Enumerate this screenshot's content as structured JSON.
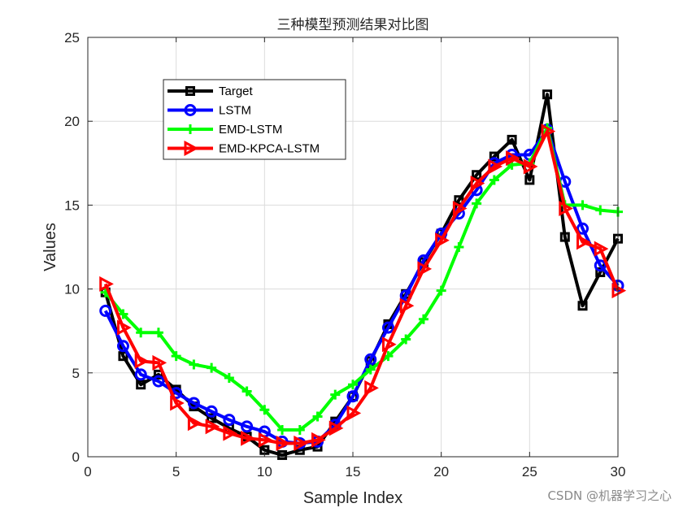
{
  "watermark": "CSDN @机器学习之心",
  "chart_data": {
    "type": "line",
    "title": "三种模型预测结果对比图",
    "xlabel": "Sample Index",
    "ylabel": "Values",
    "xlim": [
      0,
      30
    ],
    "ylim": [
      0,
      25
    ],
    "xticks": [
      0,
      5,
      10,
      15,
      20,
      25,
      30
    ],
    "yticks": [
      0,
      5,
      10,
      15,
      20,
      25
    ],
    "grid": true,
    "legend_position": "top-left",
    "x": [
      1,
      2,
      3,
      4,
      5,
      6,
      7,
      8,
      9,
      10,
      11,
      12,
      13,
      14,
      15,
      16,
      17,
      18,
      19,
      20,
      21,
      22,
      23,
      24,
      25,
      26,
      27,
      28,
      29,
      30
    ],
    "series": [
      {
        "name": "Target",
        "color": "#000000",
        "marker": "square",
        "values": [
          9.8,
          6.0,
          4.3,
          4.9,
          4.0,
          3.0,
          2.3,
          1.7,
          1.2,
          0.4,
          0.1,
          0.4,
          0.6,
          2.1,
          3.6,
          5.7,
          7.9,
          9.7,
          11.6,
          13.3,
          15.3,
          16.8,
          17.9,
          18.9,
          16.5,
          21.6,
          13.1,
          9.0,
          11.0,
          13.0
        ]
      },
      {
        "name": "LSTM",
        "color": "#0000ff",
        "marker": "circle",
        "values": [
          8.7,
          6.6,
          4.9,
          4.5,
          3.8,
          3.2,
          2.7,
          2.2,
          1.8,
          1.5,
          0.9,
          0.8,
          0.9,
          1.9,
          3.6,
          5.8,
          7.7,
          9.6,
          11.7,
          13.3,
          14.5,
          15.9,
          17.5,
          18.0,
          18.0,
          19.5,
          16.4,
          13.6,
          11.4,
          10.2
        ]
      },
      {
        "name": "EMD-LSTM",
        "color": "#00ff00",
        "marker": "plus",
        "values": [
          9.8,
          8.5,
          7.4,
          7.4,
          6.0,
          5.5,
          5.3,
          4.7,
          3.9,
          2.8,
          1.6,
          1.6,
          2.4,
          3.7,
          4.3,
          5.2,
          6.0,
          7.0,
          8.2,
          9.9,
          12.5,
          15.1,
          16.5,
          17.4,
          17.5,
          19.6,
          15.0,
          15.0,
          14.7,
          14.6
        ]
      },
      {
        "name": "EMD-KPCA-LSTM",
        "color": "#ff0000",
        "marker": "triangle-right",
        "values": [
          10.3,
          7.7,
          5.7,
          5.6,
          3.2,
          2.0,
          1.8,
          1.4,
          1.1,
          1.0,
          0.8,
          0.8,
          1.0,
          1.7,
          2.6,
          4.1,
          6.7,
          9.0,
          11.2,
          12.9,
          14.8,
          16.3,
          17.3,
          17.8,
          17.3,
          19.4,
          14.8,
          12.8,
          12.4,
          9.9
        ]
      }
    ]
  }
}
